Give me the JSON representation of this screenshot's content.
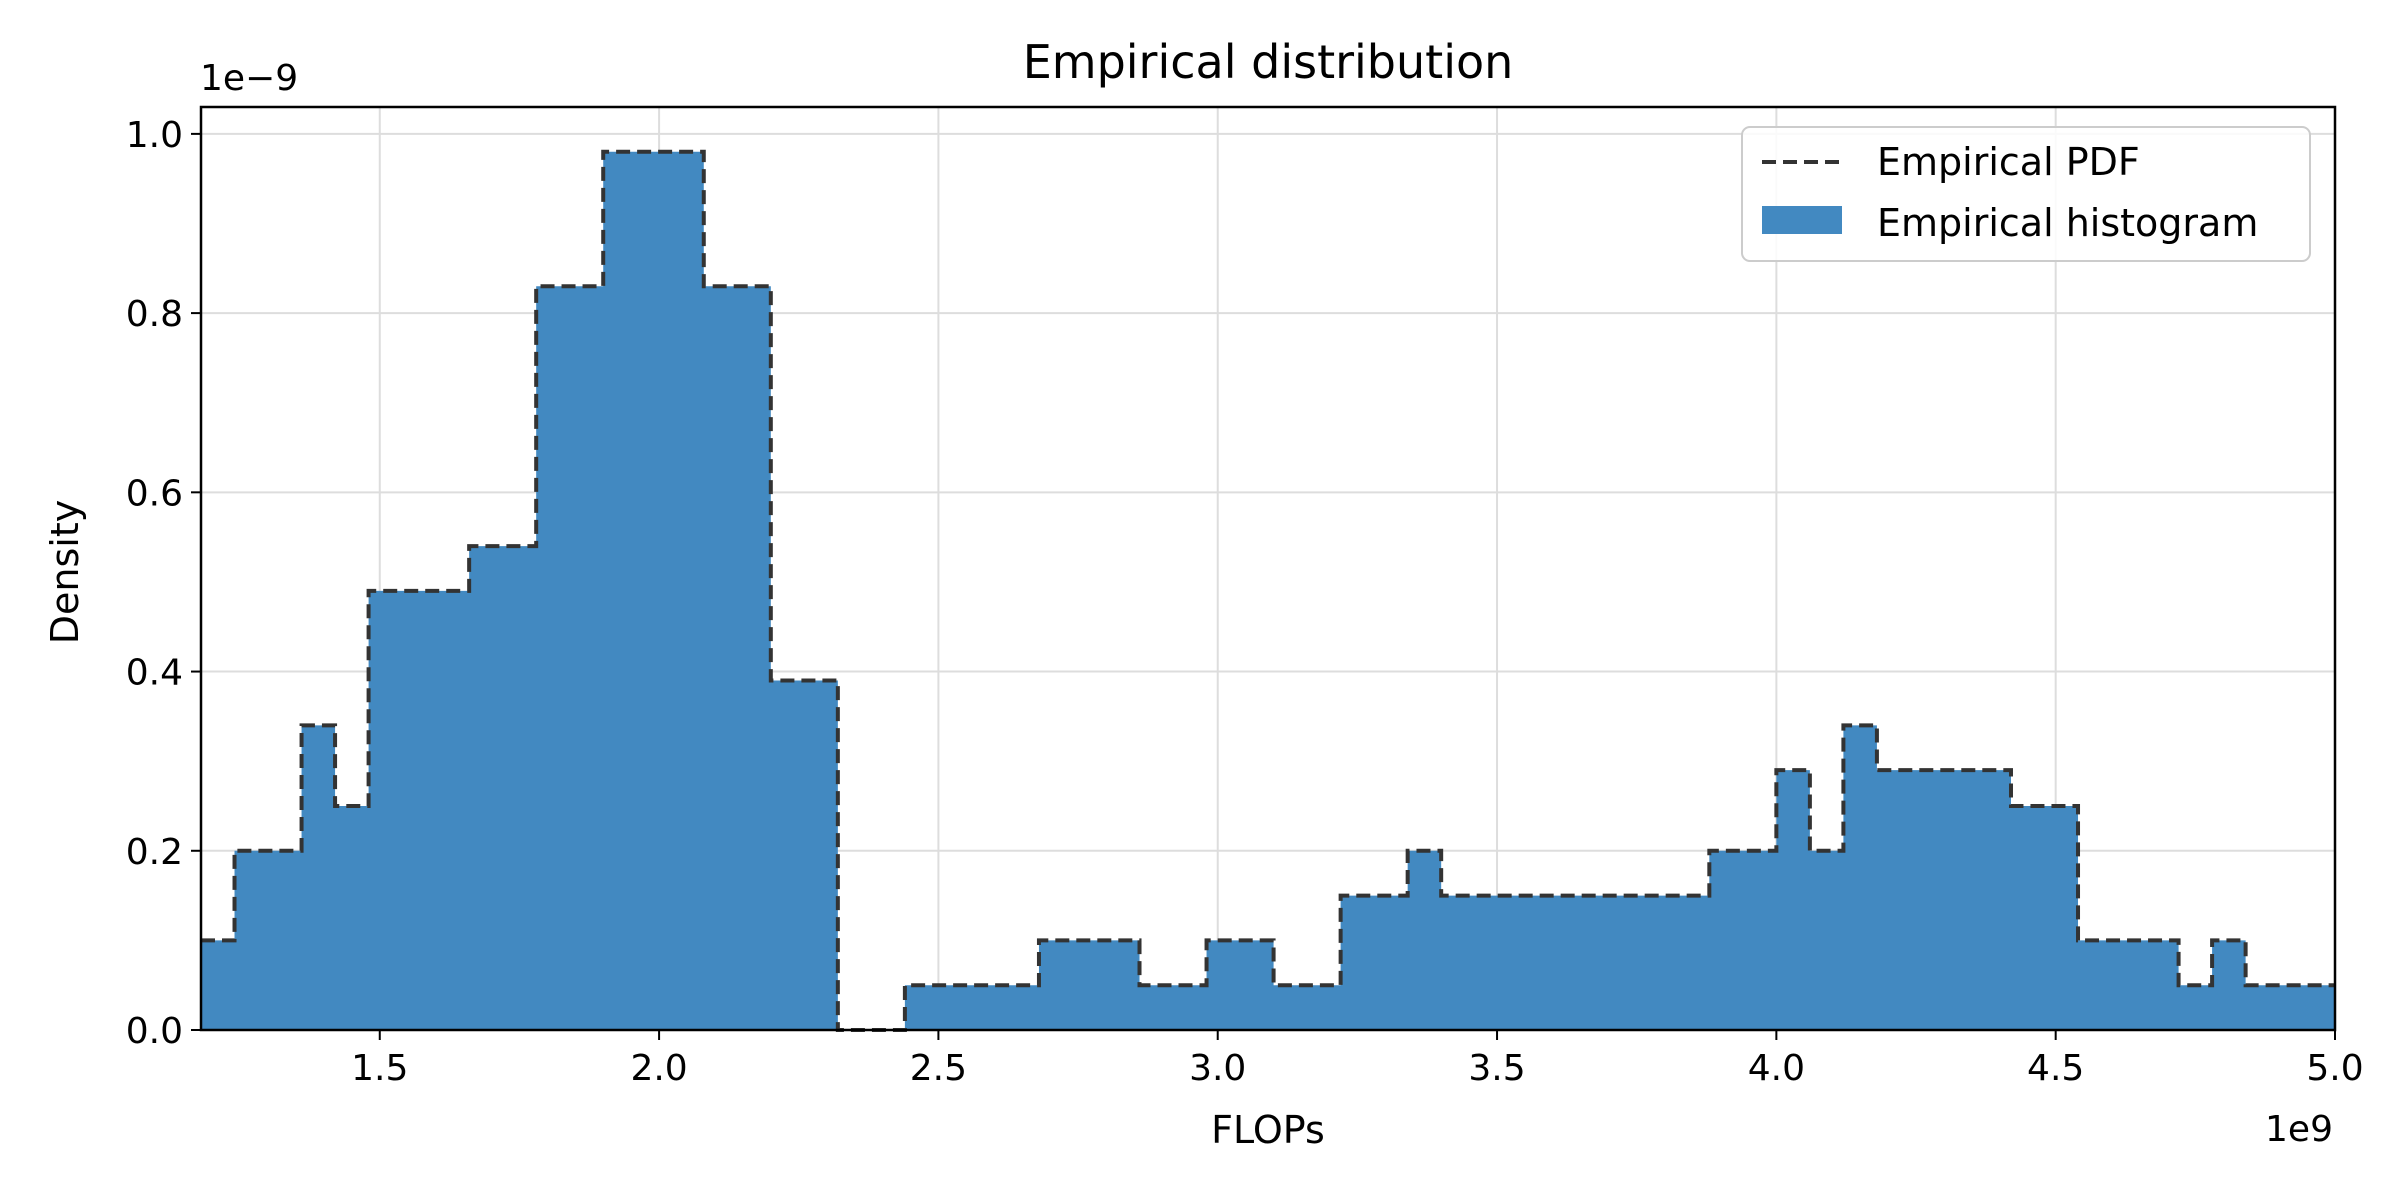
{
  "chart_data": {
    "type": "bar",
    "title": "Empirical distribution",
    "xlabel": "FLOPs",
    "ylabel": "Density",
    "x_offset_label": "1e9",
    "y_offset_label": "1e−9",
    "xlim": [
      1.18,
      5.0
    ],
    "ylim": [
      0.0,
      1.03
    ],
    "x_scale_note": "x values in units of 1e9 FLOPs; y values in units of 1e-9",
    "grid": true,
    "legend_position": "top-right",
    "xticks": [
      "1.5",
      "2.0",
      "2.5",
      "3.0",
      "3.5",
      "4.0",
      "4.5",
      "5.0"
    ],
    "yticks": [
      "0.0",
      "0.2",
      "0.4",
      "0.6",
      "0.8",
      "1.0"
    ],
    "bin_edges": [
      1.18,
      1.24,
      1.36,
      1.42,
      1.48,
      1.66,
      1.78,
      1.9,
      2.08,
      2.2,
      2.32,
      2.44,
      2.68,
      2.86,
      2.98,
      3.1,
      3.22,
      3.34,
      3.4,
      3.88,
      4.0,
      4.06,
      4.12,
      4.18,
      4.42,
      4.54,
      4.72,
      4.78,
      4.84,
      5.0
    ],
    "values": [
      0.1,
      0.2,
      0.34,
      0.25,
      0.49,
      0.54,
      0.83,
      0.98,
      0.83,
      0.39,
      0.0,
      0.05,
      0.1,
      0.05,
      0.1,
      0.05,
      0.15,
      0.2,
      0.15,
      0.2,
      0.29,
      0.2,
      0.34,
      0.29,
      0.25,
      0.1,
      0.05,
      0.1,
      0.05
    ],
    "series": [
      {
        "name": "Empirical PDF",
        "style": "dashed-step",
        "color": "#333333"
      },
      {
        "name": "Empirical histogram",
        "style": "filled-step",
        "color": "#4289c1"
      }
    ]
  }
}
